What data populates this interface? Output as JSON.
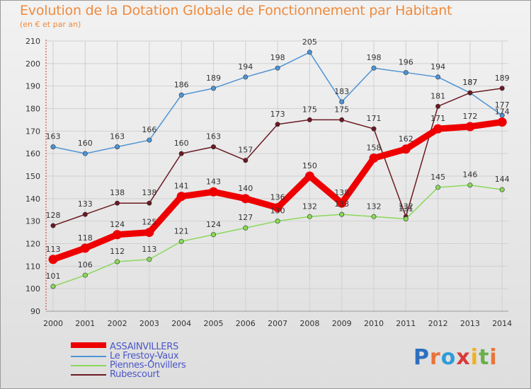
{
  "colors": {
    "title": "#f08a3c",
    "axis_text": "#333333",
    "grid": "#d0d0d0",
    "legend_text": "#4a56c8"
  },
  "chart_data": {
    "type": "line",
    "title": "Evolution de la Dotation Globale de Fonctionnement par Habitant",
    "subtitle": "(en € et par an)",
    "xlabel": "",
    "ylabel": "",
    "x": [
      "2000",
      "2001",
      "2002",
      "2003",
      "2004",
      "2005",
      "2006",
      "2007",
      "2008",
      "2009",
      "2010",
      "2011",
      "2012",
      "2013",
      "2014"
    ],
    "ylim": [
      90,
      210
    ],
    "yticks": [
      90,
      100,
      110,
      120,
      130,
      140,
      150,
      160,
      170,
      180,
      190,
      200,
      210
    ],
    "grid": true,
    "series": [
      {
        "name": "ASSAINVILLERS",
        "color": "#ee0000",
        "values": [
          113,
          118,
          124,
          125,
          141,
          143,
          140,
          136,
          150,
          138,
          158,
          162,
          171,
          172,
          174
        ],
        "labels": [
          "113",
          "118",
          "124",
          "125",
          "141",
          "143",
          "140",
          "136",
          "150",
          "138",
          "158",
          "162",
          "171",
          "172",
          "174"
        ]
      },
      {
        "name": "Le Frestoy-Vaux",
        "color": "#4f94d4",
        "values": [
          163,
          160,
          163,
          166,
          186,
          189,
          194,
          198,
          205,
          183,
          198,
          196,
          194,
          187,
          177
        ],
        "labels": [
          "163",
          "160",
          "163",
          "166",
          "186",
          "189",
          "194",
          "198",
          "205",
          "183",
          "198",
          "196",
          "194",
          "187",
          "177"
        ]
      },
      {
        "name": "Piennes-Onvillers",
        "color": "#8ad85a",
        "values": [
          101,
          106,
          112,
          113,
          121,
          124,
          127,
          130,
          132,
          133,
          132,
          131,
          145,
          146,
          144
        ],
        "labels": [
          "101",
          "106",
          "112",
          "113",
          "121",
          "124",
          "127",
          "130",
          "132",
          "133",
          "132",
          "131",
          "145",
          "146",
          "144"
        ]
      },
      {
        "name": "Rubescourt",
        "color": "#6a1a22",
        "values": [
          128,
          133,
          138,
          138,
          160,
          163,
          157,
          173,
          175,
          175,
          171,
          132,
          181,
          187,
          189
        ],
        "labels": [
          "128",
          "133",
          "138",
          "138",
          "160",
          "163",
          "157",
          "173",
          "175",
          "175",
          "171",
          "132",
          "181",
          "187",
          "189"
        ]
      }
    ],
    "legend_position": "bottom-left"
  },
  "logo": {
    "letters": [
      "P",
      "r",
      "o",
      "x",
      "i",
      "t",
      "i"
    ],
    "colors": [
      "#2e6fc0",
      "#e8743a",
      "#2e9cd8",
      "#d83a3a",
      "#f0b020",
      "#6ab04c",
      "#e8743a"
    ]
  }
}
